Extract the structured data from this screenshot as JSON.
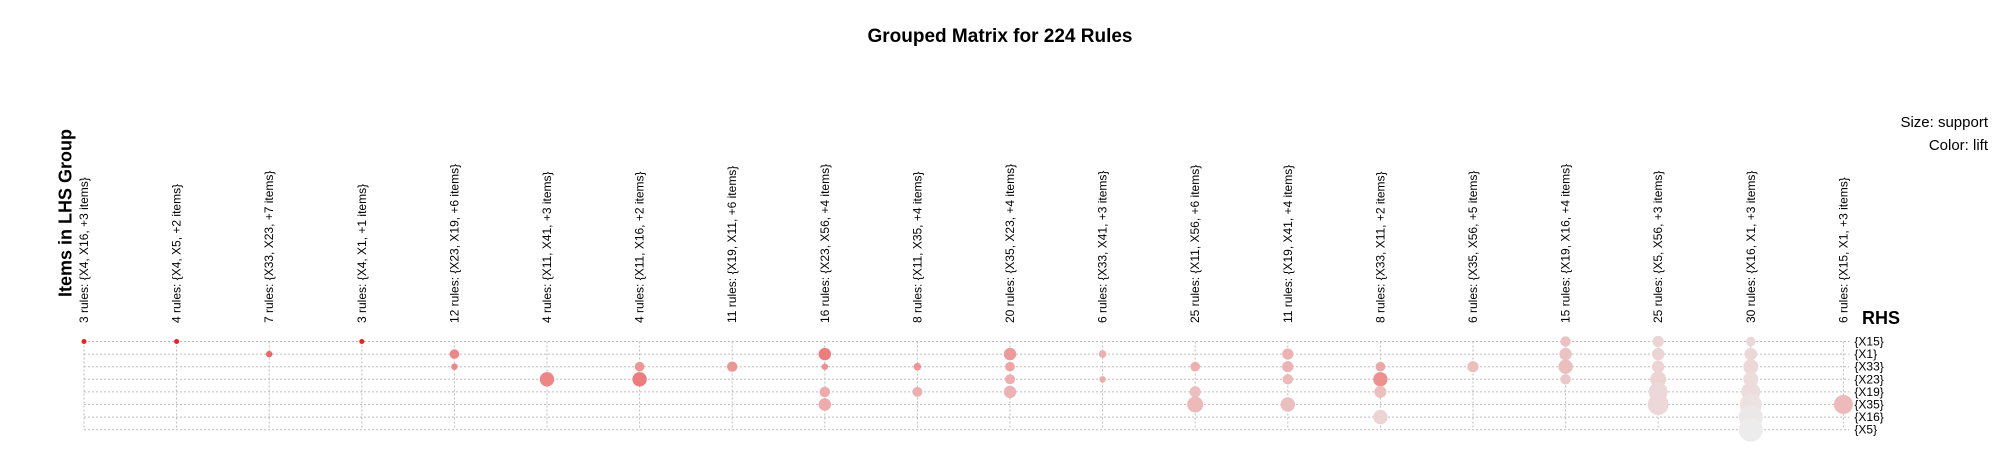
{
  "chart_data": {
    "type": "grouped-matrix",
    "title": "Grouped Matrix for 224 Rules",
    "xlabel": "Items in LHS Group",
    "ylabel": "RHS",
    "size_legend": "Size: support",
    "color_legend": "Color: lift",
    "lhs_groups": [
      "3 rules: {X4, X16, +3 items}",
      "4 rules: {X4, X5, +2 items}",
      "7 rules: {X33, X23, +7 items}",
      "3 rules: {X4, X1, +1 items}",
      "12 rules: {X23, X19, +6 items}",
      "4 rules: {X11, X41, +3 items}",
      "4 rules: {X11, X16, +2 items}",
      "11 rules: {X19, X11, +6 items}",
      "16 rules: {X23, X56, +4 items}",
      "8 rules: {X11, X35, +4 items}",
      "20 rules: {X35, X23, +4 items}",
      "6 rules: {X33, X41, +3 items}",
      "25 rules: {X11, X56, +6 items}",
      "11 rules: {X19, X41, +4 items}",
      "8 rules: {X33, X11, +2 items}",
      "6 rules: {X35, X56, +5 items}",
      "15 rules: {X19, X16, +4 items}",
      "25 rules: {X5, X56, +3 items}",
      "30 rules: {X16, X1, +3 items}",
      "6 rules: {X15, X1, +3 items}"
    ],
    "rhs_items": [
      "{X15}",
      "{X1}",
      "{X33}",
      "{X23}",
      "{X19}",
      "{X35}",
      "{X16}",
      "{X5}"
    ],
    "points": [
      {
        "col": 0,
        "row": 0,
        "support": 0.05,
        "lift": 1.0
      },
      {
        "col": 1,
        "row": 0,
        "support": 0.05,
        "lift": 1.0
      },
      {
        "col": 2,
        "row": 1,
        "support": 0.12,
        "lift": 0.65
      },
      {
        "col": 3,
        "row": 0,
        "support": 0.05,
        "lift": 1.0
      },
      {
        "col": 4,
        "row": 1,
        "support": 0.28,
        "lift": 0.5
      },
      {
        "col": 4,
        "row": 2,
        "support": 0.12,
        "lift": 0.5
      },
      {
        "col": 5,
        "row": 3,
        "support": 0.52,
        "lift": 0.5
      },
      {
        "col": 6,
        "row": 2,
        "support": 0.28,
        "lift": 0.42
      },
      {
        "col": 6,
        "row": 3,
        "support": 0.52,
        "lift": 0.55
      },
      {
        "col": 7,
        "row": 2,
        "support": 0.32,
        "lift": 0.42
      },
      {
        "col": 8,
        "row": 1,
        "support": 0.42,
        "lift": 0.55
      },
      {
        "col": 8,
        "row": 2,
        "support": 0.12,
        "lift": 0.45
      },
      {
        "col": 8,
        "row": 4,
        "support": 0.32,
        "lift": 0.32
      },
      {
        "col": 8,
        "row": 5,
        "support": 0.42,
        "lift": 0.32
      },
      {
        "col": 9,
        "row": 2,
        "support": 0.18,
        "lift": 0.42
      },
      {
        "col": 9,
        "row": 4,
        "support": 0.3,
        "lift": 0.3
      },
      {
        "col": 10,
        "row": 1,
        "support": 0.42,
        "lift": 0.4
      },
      {
        "col": 10,
        "row": 2,
        "support": 0.28,
        "lift": 0.35
      },
      {
        "col": 10,
        "row": 3,
        "support": 0.3,
        "lift": 0.3
      },
      {
        "col": 10,
        "row": 4,
        "support": 0.42,
        "lift": 0.28
      },
      {
        "col": 11,
        "row": 1,
        "support": 0.18,
        "lift": 0.3
      },
      {
        "col": 11,
        "row": 3,
        "support": 0.12,
        "lift": 0.32
      },
      {
        "col": 12,
        "row": 2,
        "support": 0.28,
        "lift": 0.3
      },
      {
        "col": 12,
        "row": 4,
        "support": 0.36,
        "lift": 0.22
      },
      {
        "col": 12,
        "row": 5,
        "support": 0.6,
        "lift": 0.25
      },
      {
        "col": 13,
        "row": 1,
        "support": 0.36,
        "lift": 0.28
      },
      {
        "col": 13,
        "row": 2,
        "support": 0.36,
        "lift": 0.28
      },
      {
        "col": 13,
        "row": 3,
        "support": 0.32,
        "lift": 0.25
      },
      {
        "col": 13,
        "row": 5,
        "support": 0.52,
        "lift": 0.22
      },
      {
        "col": 14,
        "row": 2,
        "support": 0.28,
        "lift": 0.35
      },
      {
        "col": 14,
        "row": 3,
        "support": 0.52,
        "lift": 0.45
      },
      {
        "col": 14,
        "row": 4,
        "support": 0.4,
        "lift": 0.22
      },
      {
        "col": 14,
        "row": 6,
        "support": 0.52,
        "lift": 0.12
      },
      {
        "col": 15,
        "row": 2,
        "support": 0.36,
        "lift": 0.22
      },
      {
        "col": 16,
        "row": 0,
        "support": 0.32,
        "lift": 0.2
      },
      {
        "col": 16,
        "row": 1,
        "support": 0.42,
        "lift": 0.2
      },
      {
        "col": 16,
        "row": 2,
        "support": 0.52,
        "lift": 0.22
      },
      {
        "col": 16,
        "row": 3,
        "support": 0.32,
        "lift": 0.18
      },
      {
        "col": 17,
        "row": 0,
        "support": 0.36,
        "lift": 0.12
      },
      {
        "col": 17,
        "row": 1,
        "support": 0.42,
        "lift": 0.12
      },
      {
        "col": 17,
        "row": 2,
        "support": 0.42,
        "lift": 0.12
      },
      {
        "col": 17,
        "row": 3,
        "support": 0.6,
        "lift": 0.12
      },
      {
        "col": 17,
        "row": 4,
        "support": 0.75,
        "lift": 0.1
      },
      {
        "col": 17,
        "row": 5,
        "support": 0.85,
        "lift": 0.1
      },
      {
        "col": 18,
        "row": 0,
        "support": 0.28,
        "lift": 0.1
      },
      {
        "col": 18,
        "row": 1,
        "support": 0.42,
        "lift": 0.1
      },
      {
        "col": 18,
        "row": 2,
        "support": 0.55,
        "lift": 0.1
      },
      {
        "col": 18,
        "row": 3,
        "support": 0.55,
        "lift": 0.08
      },
      {
        "col": 18,
        "row": 4,
        "support": 0.75,
        "lift": 0.08
      },
      {
        "col": 18,
        "row": 5,
        "support": 0.9,
        "lift": 0.05
      },
      {
        "col": 18,
        "row": 6,
        "support": 1.0,
        "lift": 0.02
      },
      {
        "col": 18,
        "row": 7,
        "support": 1.0,
        "lift": 0.0
      },
      {
        "col": 19,
        "row": 5,
        "support": 0.75,
        "lift": 0.25
      }
    ]
  }
}
